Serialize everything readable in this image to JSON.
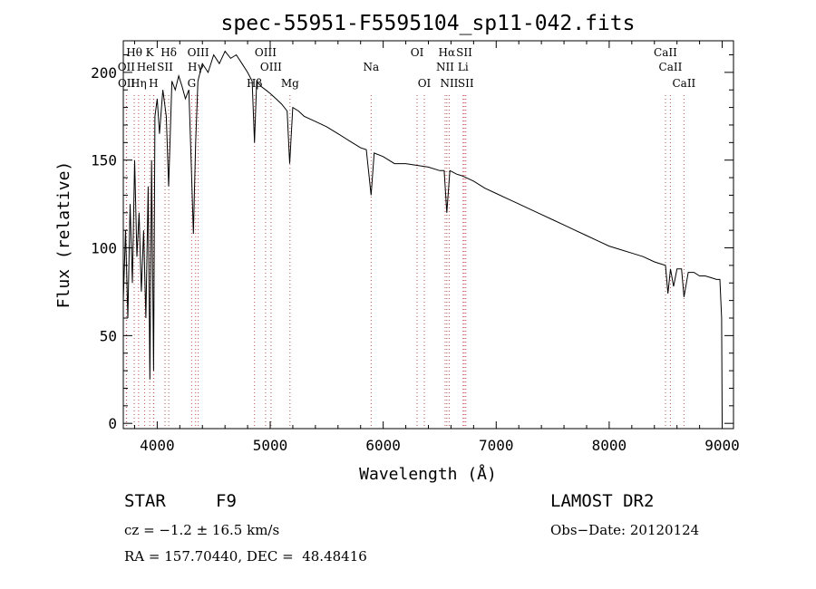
{
  "chart_data": {
    "type": "line",
    "title": "spec-55951-F5595104_sp11-042.fits",
    "xlabel": "Wavelength (Å)",
    "ylabel": "Flux (relative)",
    "xlim": [
      3700,
      9100
    ],
    "ylim": [
      -3,
      218
    ],
    "x_ticks": [
      4000,
      5000,
      6000,
      7000,
      8000,
      9000
    ],
    "y_ticks": [
      0,
      50,
      100,
      150,
      200
    ],
    "grid": false,
    "series": [
      {
        "x": [
          3700,
          3720,
          3740,
          3760,
          3780,
          3800,
          3820,
          3840,
          3860,
          3880,
          3900,
          3920,
          3935,
          3950,
          3968,
          3980,
          4000,
          4020,
          4050,
          4080,
          4101,
          4130,
          4160,
          4190,
          4220,
          4250,
          4280,
          4300,
          4320,
          4340,
          4360,
          4380,
          4400,
          4450,
          4500,
          4550,
          4600,
          4650,
          4700,
          4750,
          4800,
          4840,
          4861,
          4880,
          4920,
          4960,
          5000,
          5050,
          5100,
          5150,
          5172,
          5200,
          5250,
          5300,
          5400,
          5500,
          5600,
          5700,
          5800,
          5850,
          5893,
          5920,
          6000,
          6100,
          6200,
          6300,
          6400,
          6500,
          6540,
          6563,
          6590,
          6650,
          6700,
          6800,
          6900,
          7000,
          7100,
          7200,
          7300,
          7400,
          7500,
          7600,
          7700,
          7800,
          7900,
          8000,
          8100,
          8200,
          8300,
          8400,
          8450,
          8498,
          8520,
          8542,
          8570,
          8600,
          8640,
          8662,
          8700,
          8750,
          8800,
          8850,
          8900,
          8950,
          8980,
          8995,
          9000
        ],
        "y": [
          70,
          110,
          60,
          125,
          80,
          150,
          95,
          120,
          75,
          110,
          60,
          135,
          25,
          150,
          30,
          175,
          185,
          165,
          190,
          175,
          135,
          195,
          190,
          198,
          192,
          185,
          190,
          150,
          108,
          160,
          195,
          200,
          205,
          200,
          210,
          205,
          212,
          208,
          210,
          205,
          200,
          195,
          160,
          195,
          192,
          190,
          188,
          185,
          182,
          178,
          148,
          180,
          178,
          175,
          172,
          169,
          165,
          161,
          157,
          156,
          130,
          154,
          152,
          148,
          148,
          147,
          146,
          144,
          144,
          120,
          144,
          142,
          141,
          138,
          134,
          131,
          128,
          125,
          122,
          119,
          116,
          113,
          110,
          107,
          104,
          101,
          99,
          97,
          95,
          92,
          91,
          90,
          74,
          88,
          78,
          88,
          88,
          72,
          86,
          86,
          84,
          84,
          83,
          82,
          82,
          60,
          0
        ]
      }
    ],
    "line_labels": [
      {
        "label": "Hθ",
        "x": 3797,
        "row": 1
      },
      {
        "label": "K",
        "x": 3934,
        "row": 1
      },
      {
        "label": "Hδ",
        "x": 4102,
        "row": 1
      },
      {
        "label": "OIII",
        "x": 4363,
        "row": 1
      },
      {
        "label": "OIII",
        "x": 4959,
        "row": 1
      },
      {
        "label": "OI",
        "x": 6300,
        "row": 1
      },
      {
        "label": "Hα",
        "x": 6563,
        "row": 1
      },
      {
        "label": "SII",
        "x": 6717,
        "row": 1
      },
      {
        "label": "CaII",
        "x": 8498,
        "row": 1
      },
      {
        "label": "OII",
        "x": 3727,
        "row": 2
      },
      {
        "label": "He",
        "x": 3889,
        "row": 2
      },
      {
        "label": "I",
        "x": 3970,
        "row": 2
      },
      {
        "label": "SII",
        "x": 4069,
        "row": 2
      },
      {
        "label": "Hγ",
        "x": 4340,
        "row": 2
      },
      {
        "label": "OIII",
        "x": 5007,
        "row": 2
      },
      {
        "label": "Na",
        "x": 5893,
        "row": 2
      },
      {
        "label": "NII",
        "x": 6548,
        "row": 2
      },
      {
        "label": "Li",
        "x": 6707,
        "row": 2
      },
      {
        "label": "CaII",
        "x": 8542,
        "row": 2
      },
      {
        "label": "OII",
        "x": 3729,
        "row": 3
      },
      {
        "label": "Hη",
        "x": 3835,
        "row": 3
      },
      {
        "label": "H",
        "x": 3968,
        "row": 3
      },
      {
        "label": "G",
        "x": 4305,
        "row": 3
      },
      {
        "label": "Hβ",
        "x": 4861,
        "row": 3
      },
      {
        "label": "Mg",
        "x": 5175,
        "row": 3
      },
      {
        "label": "OI",
        "x": 6364,
        "row": 3
      },
      {
        "label": "NII",
        "x": 6584,
        "row": 3
      },
      {
        "label": "SII",
        "x": 6731,
        "row": 3
      },
      {
        "label": "CaII",
        "x": 8662,
        "row": 3
      }
    ]
  },
  "info": {
    "object_class": "STAR",
    "subclass": "F9",
    "survey": "LAMOST DR2",
    "cz": "cz = −1.2 ± 16.5 km/s",
    "obs_date": "Obs−Date: 20120124",
    "radec": "RA = 157.70440, DEC =  48.48416"
  }
}
